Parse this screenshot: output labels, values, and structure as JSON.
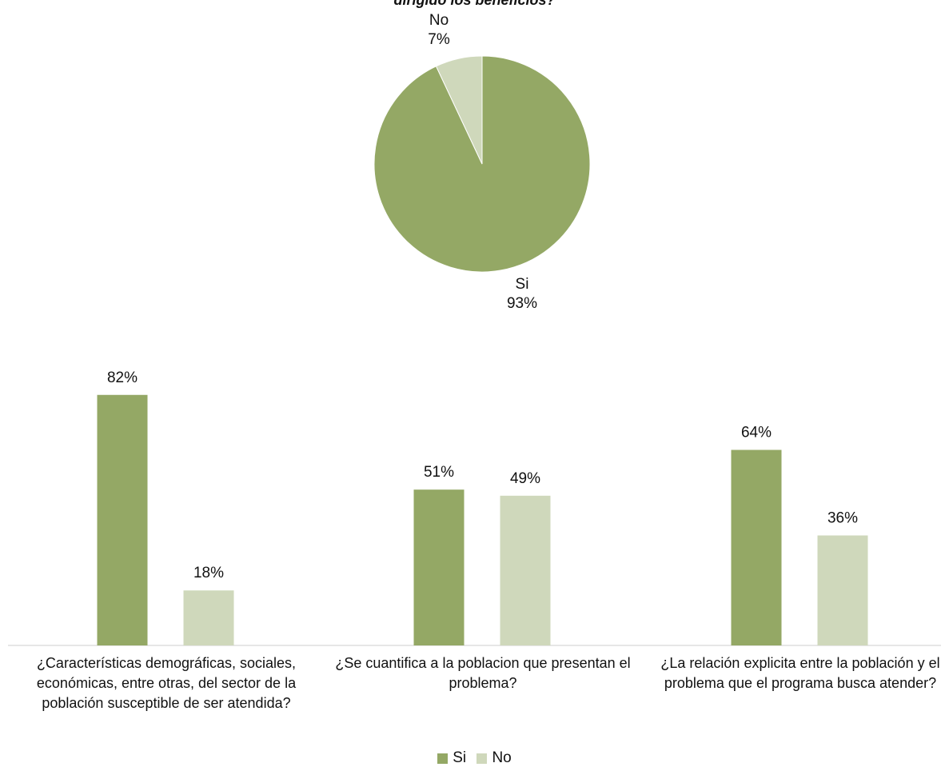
{
  "title": "dirigido los beneficios?",
  "colors": {
    "si": "#94a865",
    "no": "#cfd8bb",
    "axis": "#cccccc"
  },
  "chart_data": [
    {
      "type": "pie",
      "title": "dirigido los beneficios?",
      "slices": [
        {
          "name": "Si",
          "value": 93,
          "label": "93%"
        },
        {
          "name": "No",
          "value": 7,
          "label": "7%"
        }
      ]
    },
    {
      "type": "bar",
      "categories": [
        "¿Características demográficas, sociales, económicas, entre otras, del sector de la población susceptible de ser atendida?",
        "¿Se cuantifica a la poblacion que presentan el problema?",
        "¿La relación explicita entre la población y el problema que el programa busca atender?"
      ],
      "series": [
        {
          "name": "Si",
          "values": [
            82,
            51,
            64
          ],
          "labels": [
            "82%",
            "51%",
            "64%"
          ]
        },
        {
          "name": "No",
          "values": [
            18,
            49,
            36
          ],
          "labels": [
            "18%",
            "49%",
            "36%"
          ]
        }
      ],
      "legend": "bottom",
      "ylim": [
        0,
        100
      ],
      "grid": false
    }
  ]
}
